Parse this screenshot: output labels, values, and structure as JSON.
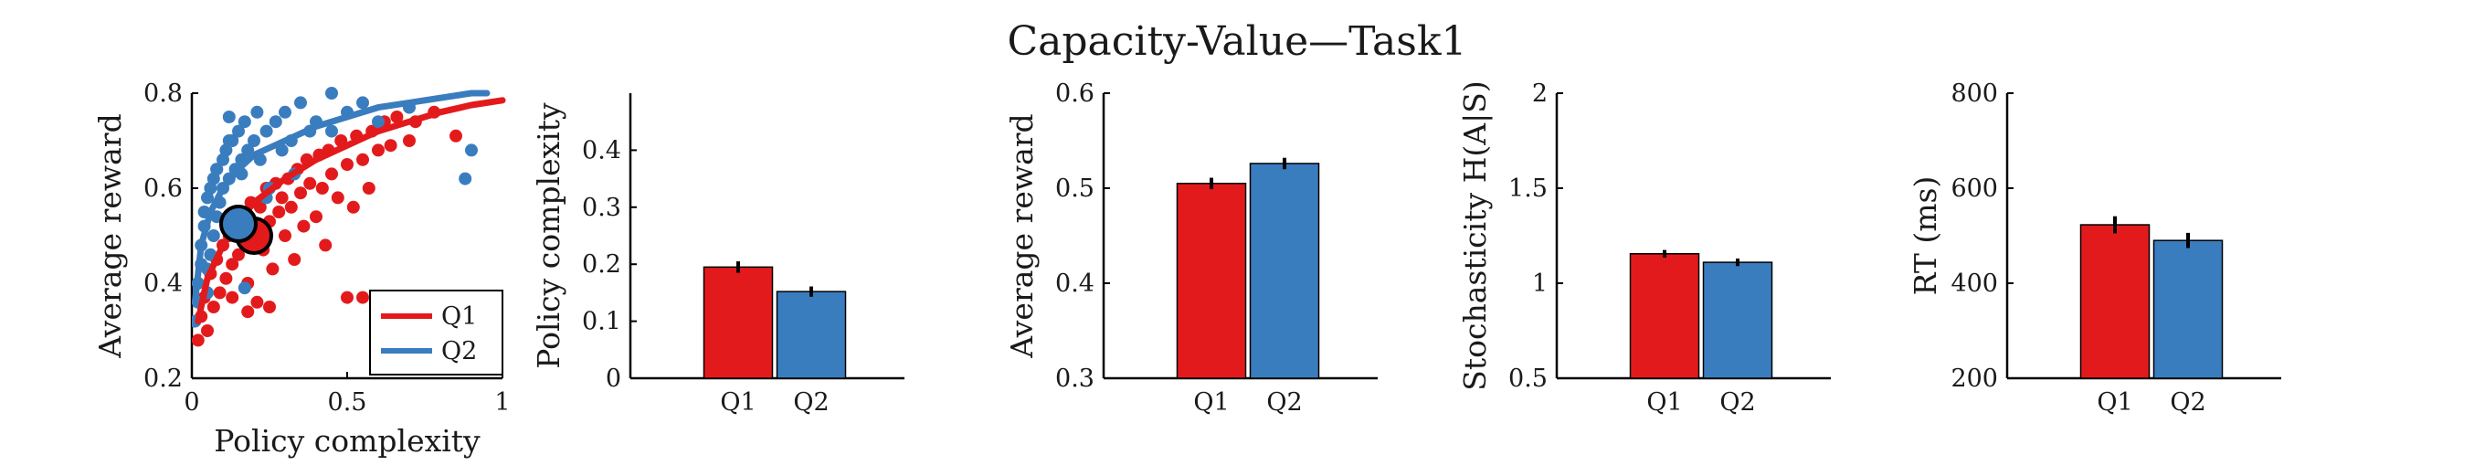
{
  "figure": {
    "title": "Capacity-Value—Task1"
  },
  "colors": {
    "Q1": "#e31a1c",
    "Q2": "#3a7dbf",
    "axis": "#000000",
    "errorbar": "#000000",
    "legend_border": "#000000"
  },
  "chart_data": [
    {
      "type": "scatter",
      "xlabel": "Policy complexity",
      "ylabel": "Average reward",
      "xlim": [
        0,
        1
      ],
      "ylim": [
        0.2,
        0.8
      ],
      "xticks": [
        "0",
        "0.5",
        "1"
      ],
      "yticks": [
        "0.2",
        "0.4",
        "0.6",
        "0.8"
      ],
      "legend": {
        "placement": "bottom-right",
        "entries": [
          "Q1",
          "Q2"
        ]
      },
      "series": [
        {
          "name": "Q1",
          "points": [
            [
              0.02,
              0.28
            ],
            [
              0.03,
              0.33
            ],
            [
              0.04,
              0.37
            ],
            [
              0.05,
              0.3
            ],
            [
              0.06,
              0.42
            ],
            [
              0.07,
              0.35
            ],
            [
              0.08,
              0.45
            ],
            [
              0.09,
              0.38
            ],
            [
              0.1,
              0.48
            ],
            [
              0.11,
              0.41
            ],
            [
              0.12,
              0.5
            ],
            [
              0.13,
              0.44
            ],
            [
              0.14,
              0.53
            ],
            [
              0.15,
              0.46
            ],
            [
              0.16,
              0.55
            ],
            [
              0.17,
              0.49
            ],
            [
              0.18,
              0.4
            ],
            [
              0.19,
              0.57
            ],
            [
              0.2,
              0.51
            ],
            [
              0.21,
              0.36
            ],
            [
              0.22,
              0.56
            ],
            [
              0.23,
              0.47
            ],
            [
              0.24,
              0.6
            ],
            [
              0.25,
              0.53
            ],
            [
              0.26,
              0.43
            ],
            [
              0.27,
              0.61
            ],
            [
              0.28,
              0.55
            ],
            [
              0.29,
              0.58
            ],
            [
              0.3,
              0.5
            ],
            [
              0.31,
              0.62
            ],
            [
              0.32,
              0.56
            ],
            [
              0.33,
              0.45
            ],
            [
              0.34,
              0.64
            ],
            [
              0.35,
              0.59
            ],
            [
              0.36,
              0.52
            ],
            [
              0.37,
              0.66
            ],
            [
              0.38,
              0.61
            ],
            [
              0.4,
              0.54
            ],
            [
              0.41,
              0.67
            ],
            [
              0.42,
              0.6
            ],
            [
              0.43,
              0.48
            ],
            [
              0.44,
              0.68
            ],
            [
              0.45,
              0.63
            ],
            [
              0.47,
              0.58
            ],
            [
              0.48,
              0.7
            ],
            [
              0.5,
              0.65
            ],
            [
              0.52,
              0.56
            ],
            [
              0.53,
              0.71
            ],
            [
              0.55,
              0.66
            ],
            [
              0.57,
              0.6
            ],
            [
              0.58,
              0.72
            ],
            [
              0.6,
              0.68
            ],
            [
              0.62,
              0.74
            ],
            [
              0.64,
              0.69
            ],
            [
              0.66,
              0.75
            ],
            [
              0.7,
              0.7
            ],
            [
              0.72,
              0.74
            ],
            [
              0.78,
              0.76
            ],
            [
              0.85,
              0.71
            ],
            [
              0.5,
              0.37
            ],
            [
              0.55,
              0.37
            ],
            [
              0.13,
              0.37
            ],
            [
              0.25,
              0.35
            ],
            [
              0.18,
              0.34
            ]
          ]
        },
        {
          "name": "Q2",
          "points": [
            [
              0.01,
              0.32
            ],
            [
              0.02,
              0.36
            ],
            [
              0.02,
              0.4
            ],
            [
              0.03,
              0.44
            ],
            [
              0.03,
              0.48
            ],
            [
              0.04,
              0.52
            ],
            [
              0.04,
              0.55
            ],
            [
              0.05,
              0.38
            ],
            [
              0.05,
              0.58
            ],
            [
              0.06,
              0.46
            ],
            [
              0.06,
              0.6
            ],
            [
              0.07,
              0.5
            ],
            [
              0.07,
              0.62
            ],
            [
              0.08,
              0.54
            ],
            [
              0.08,
              0.64
            ],
            [
              0.09,
              0.57
            ],
            [
              0.1,
              0.66
            ],
            [
              0.1,
              0.6
            ],
            [
              0.11,
              0.68
            ],
            [
              0.12,
              0.62
            ],
            [
              0.13,
              0.7
            ],
            [
              0.14,
              0.64
            ],
            [
              0.15,
              0.72
            ],
            [
              0.16,
              0.66
            ],
            [
              0.17,
              0.74
            ],
            [
              0.18,
              0.68
            ],
            [
              0.2,
              0.7
            ],
            [
              0.21,
              0.76
            ],
            [
              0.22,
              0.66
            ],
            [
              0.24,
              0.72
            ],
            [
              0.25,
              0.6
            ],
            [
              0.27,
              0.74
            ],
            [
              0.29,
              0.68
            ],
            [
              0.3,
              0.76
            ],
            [
              0.32,
              0.7
            ],
            [
              0.35,
              0.78
            ],
            [
              0.38,
              0.72
            ],
            [
              0.4,
              0.74
            ],
            [
              0.45,
              0.72
            ],
            [
              0.5,
              0.76
            ],
            [
              0.55,
              0.78
            ],
            [
              0.6,
              0.74
            ],
            [
              0.7,
              0.77
            ],
            [
              0.88,
              0.62
            ],
            [
              0.9,
              0.68
            ],
            [
              0.08,
              0.64
            ],
            [
              0.12,
              0.75
            ],
            [
              0.16,
              0.63
            ],
            [
              0.24,
              0.58
            ],
            [
              0.33,
              0.63
            ],
            [
              0.45,
              0.8
            ],
            [
              0.17,
              0.39
            ],
            [
              0.05,
              0.43
            ],
            [
              0.12,
              0.7
            ]
          ]
        }
      ],
      "fits": [
        {
          "name": "Q1",
          "x": [
            0.02,
            0.05,
            0.1,
            0.15,
            0.2,
            0.3,
            0.4,
            0.5,
            0.6,
            0.7,
            0.8,
            0.9,
            1.0
          ],
          "y": [
            0.32,
            0.41,
            0.48,
            0.53,
            0.57,
            0.62,
            0.66,
            0.69,
            0.72,
            0.74,
            0.76,
            0.775,
            0.785
          ]
        },
        {
          "name": "Q2",
          "x": [
            0.01,
            0.03,
            0.06,
            0.1,
            0.15,
            0.2,
            0.3,
            0.4,
            0.5,
            0.6,
            0.7,
            0.8,
            0.9,
            0.95
          ],
          "y": [
            0.36,
            0.48,
            0.55,
            0.6,
            0.64,
            0.67,
            0.7,
            0.73,
            0.75,
            0.77,
            0.78,
            0.79,
            0.8,
            0.8
          ]
        }
      ],
      "means": [
        {
          "name": "Q1",
          "x": 0.2,
          "y": 0.5
        },
        {
          "name": "Q2",
          "x": 0.15,
          "y": 0.525
        }
      ]
    },
    {
      "type": "bar",
      "ylabel": "Policy complexity",
      "categories": [
        "Q1",
        "Q2"
      ],
      "values": [
        0.195,
        0.152
      ],
      "errors": [
        0.01,
        0.009
      ],
      "ylim": [
        0,
        0.5
      ],
      "yticks": [
        "0",
        "0.1",
        "0.2",
        "0.3",
        "0.4"
      ]
    },
    {
      "type": "bar",
      "ylabel": "Average reward",
      "categories": [
        "Q1",
        "Q2"
      ],
      "values": [
        0.505,
        0.526
      ],
      "errors": [
        0.006,
        0.006
      ],
      "ylim": [
        0.3,
        0.6
      ],
      "yticks": [
        "0.3",
        "0.4",
        "0.5",
        "0.6"
      ]
    },
    {
      "type": "bar",
      "ylabel": "Stochasticity H(A|S)",
      "categories": [
        "Q1",
        "Q2"
      ],
      "values": [
        1.155,
        1.11
      ],
      "errors": [
        0.02,
        0.02
      ],
      "ylim": [
        0.5,
        2
      ],
      "yticks": [
        "0.5",
        "1",
        "1.5",
        "2"
      ]
    },
    {
      "type": "bar",
      "ylabel": "RT (ms)",
      "categories": [
        "Q1",
        "Q2"
      ],
      "values": [
        523,
        490
      ],
      "errors": [
        18,
        16
      ],
      "ylim": [
        200,
        800
      ],
      "yticks": [
        "200",
        "400",
        "600",
        "800"
      ]
    }
  ]
}
